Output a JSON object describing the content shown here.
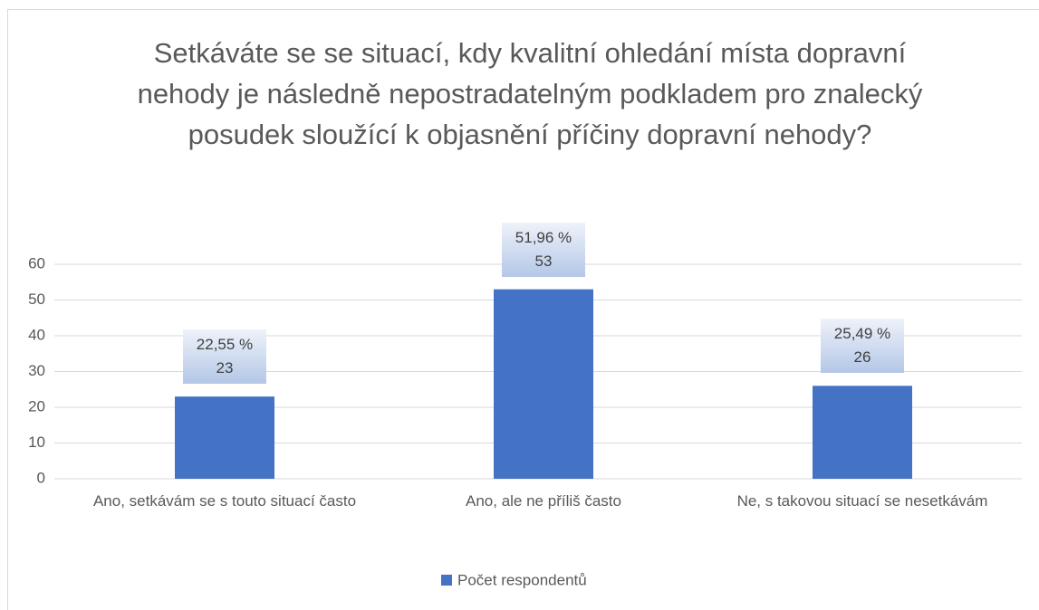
{
  "chart_data": {
    "type": "bar",
    "title": "Setkáváte se se situací, kdy kvalitní ohledání místa dopravní nehody je následně nepostradatelným podkladem pro znalecký posudek sloužící k objasnění příčiny dopravní nehody?",
    "categories": [
      "Ano, setkávám se s touto situací často",
      "Ano, ale ne příliš často",
      "Ne, s takovou situací se nesetkávám"
    ],
    "series": [
      {
        "name": "Počet respondentů",
        "color": "#4472c4",
        "values": [
          23,
          53,
          26
        ],
        "percent_labels": [
          "22,55 %",
          "51,96 %",
          "25,49 %"
        ]
      }
    ],
    "ylim": [
      0,
      60
    ],
    "yticks": [
      0,
      10,
      20,
      30,
      40,
      50,
      60
    ],
    "grid": true,
    "legend": "bottom"
  }
}
